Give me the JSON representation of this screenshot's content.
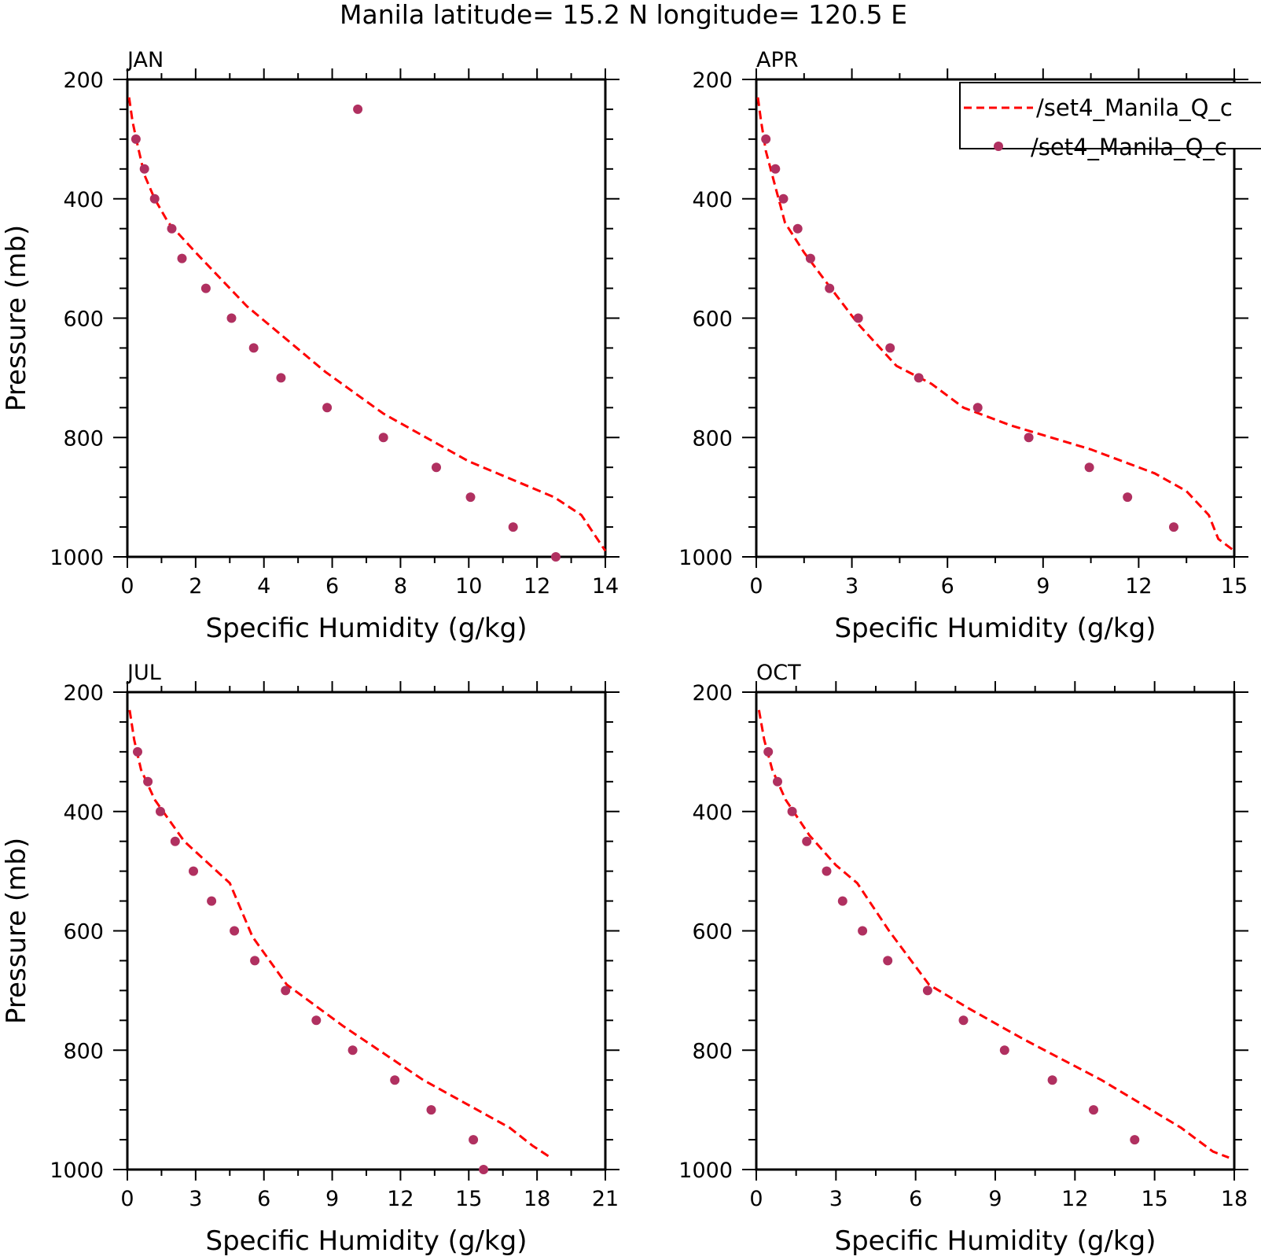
{
  "title": "Manila  latitude= 15.2 N longitude= 120.5 E",
  "colors": {
    "model": "#ff0000",
    "obs": "#b03060",
    "axis": "#000000"
  },
  "legend": {
    "placement": "top-right of APR panel",
    "entries": [
      {
        "label": "/set4_Manila_Q_c",
        "style": "dashed-line"
      },
      {
        "label": "/set4_Manila_Q_c",
        "style": "dot"
      }
    ]
  },
  "chart_data": [
    {
      "type": "line",
      "panel": "JAN",
      "xlabel": "Specific Humidity (g/kg)",
      "ylabel": "Pressure (mb)",
      "xlim": [
        0,
        14
      ],
      "ylim": [
        1000,
        200
      ],
      "y_inverted": true,
      "xticks": [
        0,
        2,
        4,
        6,
        8,
        10,
        12,
        14
      ],
      "yticks": [
        200,
        400,
        600,
        800,
        1000
      ],
      "series": [
        {
          "style": "dashed-line",
          "x": [
            0.05,
            0.15,
            0.3,
            0.5,
            0.8,
            1.2,
            2.0,
            3.5,
            5.8,
            7.5,
            10.0,
            12.5,
            13.3,
            14.0
          ],
          "y": [
            230,
            270,
            310,
            360,
            400,
            440,
            490,
            580,
            690,
            760,
            840,
            900,
            930,
            990
          ]
        },
        {
          "style": "dot",
          "x": [
            6.75,
            0.25,
            0.5,
            0.8,
            1.3,
            1.6,
            2.3,
            3.05,
            3.7,
            4.5,
            5.85,
            7.5,
            9.05,
            10.05,
            11.3,
            12.55
          ],
          "y": [
            250,
            300,
            350,
            400,
            450,
            500,
            550,
            600,
            650,
            700,
            750,
            800,
            850,
            900,
            950,
            1000
          ]
        }
      ]
    },
    {
      "type": "line",
      "panel": "APR",
      "xlabel": "Specific Humidity (g/kg)",
      "ylabel": "",
      "xlim": [
        0,
        15
      ],
      "ylim": [
        1000,
        200
      ],
      "y_inverted": true,
      "xticks": [
        0,
        3,
        6,
        9,
        12,
        15
      ],
      "yticks": [
        200,
        400,
        600,
        800,
        1000
      ],
      "series": [
        {
          "style": "dashed-line",
          "x": [
            0.05,
            0.15,
            0.3,
            0.6,
            0.9,
            1.5,
            2.2,
            3.2,
            4.4,
            5.5,
            6.5,
            8.0,
            10.5,
            12.5,
            13.5,
            14.2,
            14.5,
            15.0
          ],
          "y": [
            230,
            270,
            320,
            380,
            440,
            490,
            540,
            610,
            680,
            710,
            750,
            780,
            820,
            860,
            890,
            930,
            970,
            990
          ]
        },
        {
          "style": "dot",
          "x": [
            0.3,
            0.6,
            0.85,
            1.3,
            1.7,
            2.3,
            3.2,
            4.2,
            5.1,
            6.95,
            8.55,
            10.45,
            11.65,
            13.1
          ],
          "y": [
            300,
            350,
            400,
            450,
            500,
            550,
            600,
            650,
            700,
            750,
            800,
            850,
            900,
            950
          ]
        }
      ]
    },
    {
      "type": "line",
      "panel": "JUL",
      "xlabel": "Specific Humidity (g/kg)",
      "ylabel": "Pressure (mb)",
      "xlim": [
        0,
        21
      ],
      "ylim": [
        1000,
        200
      ],
      "y_inverted": true,
      "xticks": [
        0,
        3,
        6,
        9,
        12,
        15,
        18,
        21
      ],
      "yticks": [
        200,
        400,
        600,
        800,
        1000
      ],
      "series": [
        {
          "style": "dashed-line",
          "x": [
            0.1,
            0.3,
            0.6,
            1.2,
            2.5,
            4.5,
            5.5,
            7.0,
            9.5,
            13.0,
            16.8,
            17.8,
            18.6
          ],
          "y": [
            230,
            280,
            330,
            380,
            450,
            520,
            610,
            690,
            760,
            850,
            930,
            960,
            980
          ]
        },
        {
          "style": "dot",
          "x": [
            0.45,
            0.9,
            1.45,
            2.1,
            2.9,
            3.7,
            4.7,
            5.6,
            6.95,
            8.3,
            9.9,
            11.75,
            13.35,
            15.2,
            15.65
          ],
          "y": [
            300,
            350,
            400,
            450,
            500,
            550,
            600,
            650,
            700,
            750,
            800,
            850,
            900,
            950,
            1000
          ]
        }
      ]
    },
    {
      "type": "line",
      "panel": "OCT",
      "xlabel": "Specific Humidity (g/kg)",
      "ylabel": "",
      "xlim": [
        0,
        18
      ],
      "ylim": [
        1000,
        200
      ],
      "y_inverted": true,
      "xticks": [
        0,
        3,
        6,
        9,
        12,
        15,
        18
      ],
      "yticks": [
        200,
        400,
        600,
        800,
        1000
      ],
      "series": [
        {
          "style": "dashed-line",
          "x": [
            0.1,
            0.3,
            0.6,
            1.1,
            2.0,
            3.0,
            3.8,
            5.0,
            6.5,
            8.0,
            10.0,
            13.0,
            16.0,
            17.2,
            17.8
          ],
          "y": [
            230,
            280,
            330,
            380,
            440,
            490,
            520,
            600,
            690,
            730,
            780,
            850,
            930,
            970,
            980
          ]
        },
        {
          "style": "dot",
          "x": [
            0.45,
            0.8,
            1.35,
            1.9,
            2.65,
            3.25,
            4.0,
            4.95,
            6.45,
            7.8,
            9.35,
            11.15,
            12.7,
            14.25
          ],
          "y": [
            300,
            350,
            400,
            450,
            500,
            550,
            600,
            650,
            700,
            750,
            800,
            850,
            900,
            950
          ]
        }
      ]
    }
  ]
}
